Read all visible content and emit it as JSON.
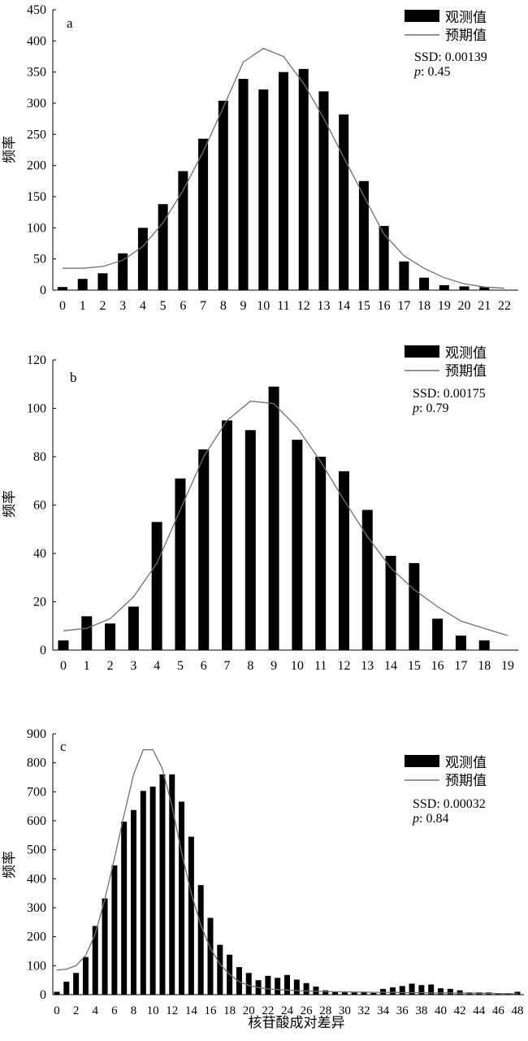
{
  "figure": {
    "xlabel": "核苷酸成对差异",
    "legend": {
      "observed": "观测值",
      "expected": "预期值"
    }
  },
  "chart_data": [
    {
      "type": "bar",
      "panel_label": "a",
      "ylabel": "频率",
      "ylim": [
        0,
        450
      ],
      "yticks": [
        0,
        50,
        100,
        150,
        200,
        250,
        300,
        350,
        400,
        450
      ],
      "categories": [
        "0",
        "1",
        "2",
        "3",
        "4",
        "5",
        "6",
        "7",
        "8",
        "9",
        "10",
        "11",
        "12",
        "13",
        "14",
        "15",
        "16",
        "17",
        "18",
        "19",
        "20",
        "21",
        "22"
      ],
      "series": [
        {
          "name": "观测值",
          "type": "bar",
          "values": [
            5,
            18,
            27,
            59,
            100,
            138,
            191,
            243,
            304,
            339,
            322,
            350,
            355,
            319,
            282,
            175,
            103,
            46,
            20,
            8,
            6,
            5,
            null
          ]
        },
        {
          "name": "预期值",
          "type": "line",
          "values": [
            35,
            35,
            38,
            48,
            70,
            108,
            160,
            222,
            293,
            366,
            388,
            375,
            332,
            276,
            213,
            151,
            90,
            55,
            35,
            20,
            10,
            5,
            3
          ]
        }
      ],
      "annotations": [
        "SSD: 0.00139",
        "p: 0.45"
      ]
    },
    {
      "type": "bar",
      "panel_label": "b",
      "ylabel": "频率",
      "ylim": [
        0,
        120
      ],
      "yticks": [
        0,
        20,
        40,
        60,
        80,
        100,
        120
      ],
      "categories": [
        "0",
        "1",
        "2",
        "3",
        "4",
        "5",
        "6",
        "7",
        "8",
        "9",
        "10",
        "11",
        "12",
        "13",
        "14",
        "15",
        "16",
        "17",
        "18",
        "19"
      ],
      "series": [
        {
          "name": "观测值",
          "type": "bar",
          "values": [
            4,
            14,
            11,
            18,
            53,
            71,
            83,
            95,
            91,
            109,
            87,
            80,
            74,
            58,
            39,
            36,
            13,
            6,
            4,
            null
          ]
        },
        {
          "name": "预期值",
          "type": "line",
          "values": [
            8,
            9,
            13,
            22,
            36,
            58,
            80,
            95,
            103,
            102,
            92,
            78,
            62,
            47,
            34,
            25,
            18,
            12,
            9,
            6
          ]
        }
      ],
      "annotations": [
        "SSD: 0.00175",
        "p: 0.79"
      ]
    },
    {
      "type": "bar",
      "panel_label": "c",
      "ylabel": "频率",
      "ylim": [
        0,
        900
      ],
      "yticks": [
        0,
        100,
        200,
        300,
        400,
        500,
        600,
        700,
        800,
        900
      ],
      "categories": [
        "0",
        "1",
        "2",
        "3",
        "4",
        "5",
        "6",
        "7",
        "8",
        "9",
        "10",
        "11",
        "12",
        "13",
        "14",
        "15",
        "16",
        "17",
        "18",
        "19",
        "20",
        "21",
        "22",
        "23",
        "24",
        "25",
        "26",
        "27",
        "28",
        "29",
        "30",
        "31",
        "32",
        "33",
        "34",
        "35",
        "36",
        "37",
        "38",
        "39",
        "40",
        "41",
        "42",
        "43",
        "44",
        "45",
        "46",
        "47",
        "48"
      ],
      "xtick_labels": [
        "0",
        "2",
        "4",
        "6",
        "8",
        "10",
        "12",
        "14",
        "16",
        "18",
        "20",
        "22",
        "24",
        "26",
        "28",
        "30",
        "32",
        "34",
        "36",
        "38",
        "40",
        "42",
        "44",
        "46",
        "48"
      ],
      "series": [
        {
          "name": "观测值",
          "type": "bar",
          "values": [
            10,
            45,
            75,
            130,
            237,
            332,
            446,
            597,
            637,
            703,
            718,
            760,
            760,
            666,
            545,
            378,
            265,
            172,
            138,
            95,
            75,
            50,
            65,
            58,
            68,
            52,
            40,
            28,
            15,
            10,
            8,
            8,
            8,
            6,
            20,
            25,
            30,
            38,
            33,
            35,
            22,
            20,
            15,
            8,
            8,
            8,
            5,
            5,
            10
          ]
        },
        {
          "name": "预期值",
          "type": "line",
          "values": [
            85,
            88,
            100,
            135,
            210,
            330,
            470,
            620,
            760,
            845,
            845,
            780,
            650,
            490,
            350,
            240,
            160,
            105,
            70,
            45,
            32,
            25,
            20,
            18,
            16,
            14,
            13,
            12,
            11,
            10,
            10,
            9,
            9,
            8,
            8,
            8,
            7,
            7,
            7,
            6,
            6,
            6,
            5,
            5,
            5,
            5,
            4,
            4,
            4
          ]
        }
      ],
      "annotations": [
        "SSD: 0.00032",
        "p: 0.84"
      ]
    }
  ]
}
